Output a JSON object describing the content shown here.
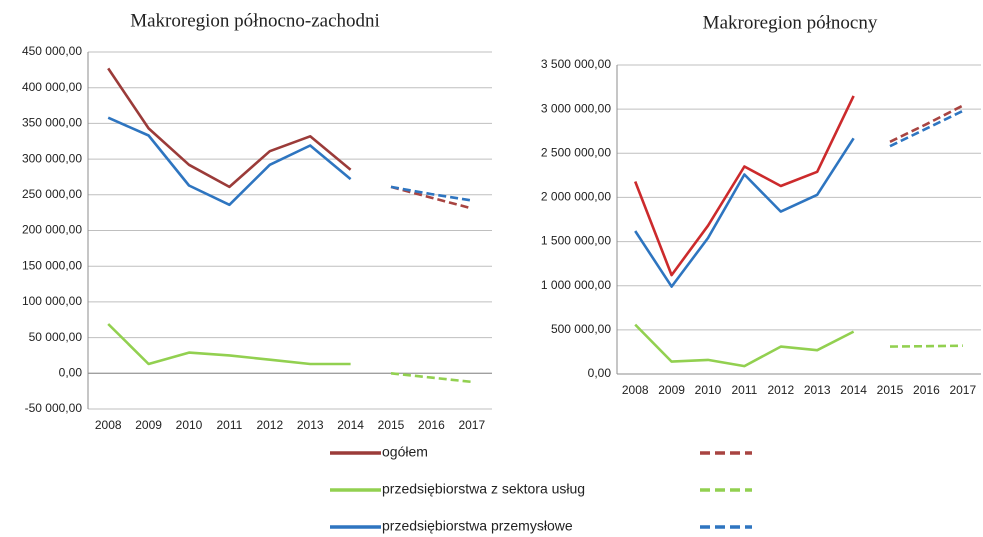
{
  "chart_data": [
    {
      "type": "line",
      "title": "Makroregion północno-zachodni",
      "categories": [
        "2008",
        "2009",
        "2010",
        "2011",
        "2012",
        "2013",
        "2014",
        "2015",
        "2016",
        "2017"
      ],
      "ylim": [
        -50000,
        450000
      ],
      "yticks": [
        {
          "value": -50000,
          "label": "-50 000,00"
        },
        {
          "value": 0,
          "label": "0,00"
        },
        {
          "value": 50000,
          "label": "50 000,00"
        },
        {
          "value": 100000,
          "label": "100 000,00"
        },
        {
          "value": 150000,
          "label": "150 000,00"
        },
        {
          "value": 200000,
          "label": "200 000,00"
        },
        {
          "value": 250000,
          "label": "250 000,00"
        },
        {
          "value": 300000,
          "label": "300 000,00"
        },
        {
          "value": 350000,
          "label": "350 000,00"
        },
        {
          "value": 400000,
          "label": "400 000,00"
        },
        {
          "value": 450000,
          "label": "450 000,00"
        }
      ],
      "grid": true,
      "series": [
        {
          "name": "ogółem",
          "color": "#9b3b39",
          "values": [
            427000,
            343000,
            292000,
            261000,
            311000,
            332000,
            285000,
            null,
            null,
            null
          ]
        },
        {
          "name": "przedsiębiorstwa z sektora usług",
          "color": "#92d050",
          "values": [
            69000,
            13000,
            29000,
            25000,
            19000,
            13000,
            13000,
            null,
            null,
            null
          ]
        },
        {
          "name": "przedsiębiorstwa przemysłowe",
          "color": "#2e75c0",
          "values": [
            358000,
            333000,
            263000,
            236000,
            292000,
            319000,
            272000,
            null,
            null,
            null
          ]
        },
        {
          "color": "#a84441",
          "dashed": true,
          "values": [
            null,
            null,
            null,
            null,
            null,
            null,
            null,
            261000,
            246000,
            231000
          ]
        },
        {
          "color": "#92d050",
          "dashed": true,
          "values": [
            null,
            null,
            null,
            null,
            null,
            null,
            null,
            0,
            -6000,
            -12000
          ]
        },
        {
          "color": "#2e75c0",
          "dashed": true,
          "values": [
            null,
            null,
            null,
            null,
            null,
            null,
            null,
            261000,
            251000,
            242000
          ]
        }
      ]
    },
    {
      "type": "line",
      "title": "Makroregion północny",
      "categories": [
        "2008",
        "2009",
        "2010",
        "2011",
        "2012",
        "2013",
        "2014",
        "2015",
        "2016",
        "2017"
      ],
      "ylim": [
        0,
        3500000
      ],
      "yticks": [
        {
          "value": 0,
          "label": "0,00"
        },
        {
          "value": 500000,
          "label": "500 000,00"
        },
        {
          "value": 1000000,
          "label": "1 000 000,00"
        },
        {
          "value": 1500000,
          "label": "1 500 000,00"
        },
        {
          "value": 2000000,
          "label": "2 000 000,00"
        },
        {
          "value": 2500000,
          "label": "2 500 000,00"
        },
        {
          "value": 3000000,
          "label": "3 000 000,00"
        },
        {
          "value": 3500000,
          "label": "3 500 000,00"
        }
      ],
      "grid": true,
      "series": [
        {
          "color": "#cc2a2c",
          "values": [
            2180000,
            1120000,
            1680000,
            2350000,
            2130000,
            2290000,
            3150000,
            null,
            null,
            null
          ]
        },
        {
          "color": "#92d050",
          "values": [
            560000,
            140000,
            160000,
            90000,
            310000,
            270000,
            480000,
            null,
            null,
            null
          ]
        },
        {
          "color": "#2e75c0",
          "values": [
            1620000,
            990000,
            1540000,
            2260000,
            1840000,
            2030000,
            2670000,
            null,
            null,
            null
          ]
        },
        {
          "color": "#a84441",
          "dashed": true,
          "values": [
            null,
            null,
            null,
            null,
            null,
            null,
            null,
            2630000,
            2830000,
            3040000
          ]
        },
        {
          "color": "#92d050",
          "dashed": true,
          "values": [
            null,
            null,
            null,
            null,
            null,
            null,
            null,
            310000,
            315000,
            320000
          ]
        },
        {
          "color": "#2e75c0",
          "dashed": true,
          "values": [
            null,
            null,
            null,
            null,
            null,
            null,
            null,
            2580000,
            2780000,
            2980000
          ]
        }
      ]
    }
  ]
}
